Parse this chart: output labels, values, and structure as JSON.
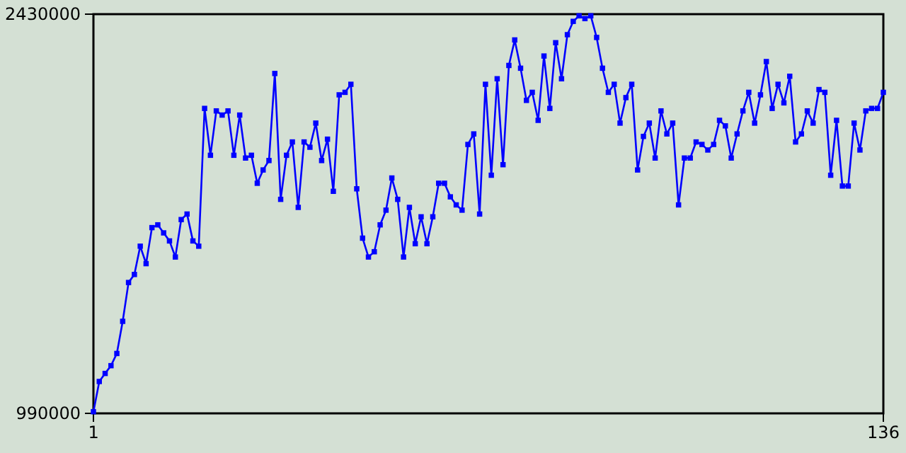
{
  "chart_data": {
    "type": "line",
    "x": [
      1,
      2,
      3,
      4,
      5,
      6,
      7,
      8,
      9,
      10,
      11,
      12,
      13,
      14,
      15,
      16,
      17,
      18,
      19,
      20,
      21,
      22,
      23,
      24,
      25,
      26,
      27,
      28,
      29,
      30,
      31,
      32,
      33,
      34,
      35,
      36,
      37,
      38,
      39,
      40,
      41,
      42,
      43,
      44,
      45,
      46,
      47,
      48,
      49,
      50,
      51,
      52,
      53,
      54,
      55,
      56,
      57,
      58,
      59,
      60,
      61,
      62,
      63,
      64,
      65,
      66,
      67,
      68,
      69,
      70,
      71,
      72,
      73,
      74,
      75,
      76,
      77,
      78,
      79,
      80,
      81,
      82,
      83,
      84,
      85,
      86,
      87,
      88,
      89,
      90,
      91,
      92,
      93,
      94,
      95,
      96,
      97,
      98,
      99,
      100,
      101,
      102,
      103,
      104,
      105,
      106,
      107,
      108,
      109,
      110,
      111,
      112,
      113,
      114,
      115,
      116,
      117,
      118,
      119,
      120,
      121,
      122,
      123,
      124,
      125,
      126,
      127,
      128,
      129,
      130,
      131,
      132,
      133,
      134,
      135,
      136
    ],
    "series": [
      {
        "color": "#0000ff",
        "values": [
          996000,
          1105000,
          1134000,
          1162000,
          1206000,
          1322000,
          1462000,
          1491000,
          1593000,
          1530000,
          1660000,
          1670000,
          1641000,
          1612000,
          1554000,
          1689000,
          1709000,
          1612000,
          1593000,
          2090000,
          1921000,
          2081000,
          2066000,
          2081000,
          1921000,
          2066000,
          1911000,
          1921000,
          1820000,
          1868000,
          1902000,
          2216000,
          1762000,
          1921000,
          1969000,
          1733000,
          1969000,
          1950000,
          2037000,
          1902000,
          1979000,
          1791000,
          2139000,
          2148000,
          2177000,
          1800000,
          1622000,
          1554000,
          1573000,
          1670000,
          1723000,
          1839000,
          1762000,
          1554000,
          1733000,
          1602000,
          1699000,
          1602000,
          1699000,
          1820000,
          1820000,
          1771000,
          1742000,
          1723000,
          1960000,
          1998000,
          1709000,
          2177000,
          1849000,
          2197000,
          1887000,
          2245000,
          2337000,
          2235000,
          2119000,
          2148000,
          2047000,
          2279000,
          2090000,
          2327000,
          2197000,
          2356000,
          2404000,
          2424000,
          2414000,
          2424000,
          2346000,
          2235000,
          2148000,
          2177000,
          2037000,
          2129000,
          2177000,
          1868000,
          1989000,
          2037000,
          1911000,
          2081000,
          1998000,
          2037000,
          1742000,
          1911000,
          1911000,
          1969000,
          1960000,
          1940000,
          1960000,
          2047000,
          2027000,
          1911000,
          1998000,
          2081000,
          2148000,
          2037000,
          2139000,
          2259000,
          2090000,
          2177000,
          2110000,
          2206000,
          1969000,
          1998000,
          2081000,
          2037000,
          2158000,
          2148000,
          1849000,
          2047000,
          1810000,
          1810000,
          2037000,
          1940000,
          2081000,
          2090000,
          2090000,
          2148000
        ]
      }
    ],
    "xlim": [
      1,
      136
    ],
    "xticks": [
      1,
      136
    ],
    "ylim": [
      990000,
      2430000
    ],
    "yticks": [
      990000,
      2430000
    ],
    "marker": "square",
    "line_style": "solid"
  }
}
